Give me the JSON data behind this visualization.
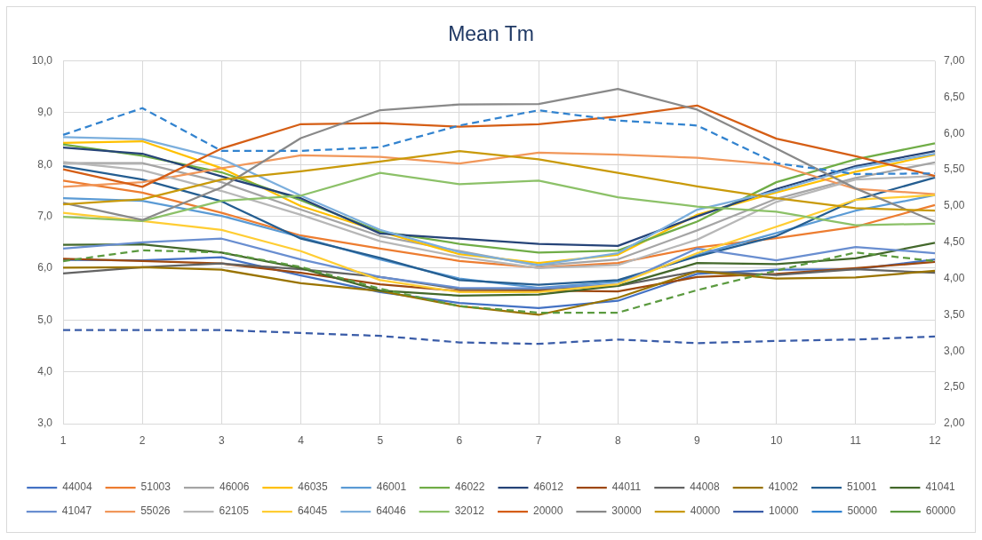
{
  "chart_data": {
    "type": "line",
    "title": "Mean Tm",
    "categories": [
      "1",
      "2",
      "3",
      "4",
      "5",
      "6",
      "7",
      "8",
      "9",
      "10",
      "11",
      "12"
    ],
    "series": [
      {
        "name": "44004",
        "color": "#4472c4",
        "values": [
          6.16,
          6.15,
          6.21,
          5.86,
          5.54,
          5.33,
          5.23,
          5.37,
          5.89,
          5.97,
          5.98,
          6.17
        ]
      },
      {
        "name": "51003",
        "color": "#ed7d31",
        "values": [
          7.69,
          7.46,
          7.07,
          6.63,
          6.38,
          6.14,
          6.01,
          6.1,
          6.4,
          6.58,
          6.8,
          7.22
        ]
      },
      {
        "name": "46006",
        "color": "#a5a5a5",
        "values": [
          8.03,
          8.03,
          7.66,
          7.13,
          6.62,
          6.33,
          6.05,
          6.17,
          6.73,
          7.34,
          7.74,
          8.04
        ]
      },
      {
        "name": "46035",
        "color": "#ffc000",
        "values": [
          8.42,
          8.45,
          7.93,
          7.2,
          6.71,
          6.27,
          6.1,
          6.26,
          7.03,
          7.46,
          7.86,
          8.19
        ]
      },
      {
        "name": "46001",
        "color": "#5b9bd5",
        "values": [
          7.35,
          7.3,
          7.01,
          6.6,
          6.17,
          5.8,
          5.62,
          5.74,
          6.26,
          6.68,
          7.11,
          7.41
        ]
      },
      {
        "name": "46022",
        "color": "#70ad47",
        "values": [
          8.39,
          8.17,
          7.85,
          7.31,
          6.71,
          6.47,
          6.3,
          6.34,
          6.9,
          7.66,
          8.1,
          8.41
        ]
      },
      {
        "name": "46012",
        "color": "#264478",
        "values": [
          8.33,
          8.21,
          7.77,
          7.35,
          6.67,
          6.57,
          6.47,
          6.43,
          7.0,
          7.53,
          7.97,
          8.26
        ]
      },
      {
        "name": "44011",
        "color": "#9e480e",
        "values": [
          6.18,
          6.14,
          6.09,
          5.91,
          5.69,
          5.56,
          5.57,
          5.55,
          5.83,
          5.89,
          6.0,
          6.12
        ]
      },
      {
        "name": "44008",
        "color": "#636363",
        "values": [
          5.9,
          6.02,
          6.09,
          5.98,
          5.83,
          5.6,
          5.6,
          5.66,
          5.94,
          5.87,
          5.98,
          5.91
        ]
      },
      {
        "name": "41002",
        "color": "#997300",
        "values": [
          6.01,
          6.02,
          5.97,
          5.71,
          5.56,
          5.27,
          5.1,
          5.43,
          5.94,
          5.8,
          5.82,
          5.95
        ]
      },
      {
        "name": "51001",
        "color": "#255e91",
        "values": [
          7.97,
          7.71,
          7.29,
          6.57,
          6.2,
          5.77,
          5.68,
          5.77,
          6.23,
          6.62,
          7.32,
          7.75
        ]
      },
      {
        "name": "41041",
        "color": "#43682b",
        "values": [
          6.45,
          6.46,
          6.3,
          6.0,
          5.57,
          5.47,
          5.49,
          5.66,
          6.1,
          6.08,
          6.19,
          6.49
        ]
      },
      {
        "name": "41047",
        "color": "#698ed0",
        "values": [
          6.38,
          6.5,
          6.57,
          6.17,
          5.83,
          5.62,
          5.61,
          5.69,
          6.38,
          6.15,
          6.41,
          6.29
        ]
      },
      {
        "name": "55026",
        "color": "#f1975a",
        "values": [
          7.57,
          7.66,
          7.93,
          8.18,
          8.15,
          8.02,
          8.23,
          8.19,
          8.13,
          8.0,
          7.53,
          7.43
        ]
      },
      {
        "name": "62105",
        "color": "#b7b7b7",
        "values": [
          8.05,
          7.89,
          7.49,
          7.03,
          6.52,
          6.22,
          6.0,
          6.06,
          6.55,
          7.28,
          7.71,
          7.78
        ]
      },
      {
        "name": "64045",
        "color": "#ffcd33",
        "values": [
          7.07,
          6.91,
          6.74,
          6.33,
          5.77,
          5.54,
          5.54,
          5.69,
          6.29,
          6.8,
          7.32,
          7.41
        ]
      },
      {
        "name": "64046",
        "color": "#7cafdd",
        "values": [
          8.53,
          8.49,
          8.11,
          7.4,
          6.74,
          6.31,
          6.06,
          6.29,
          7.13,
          7.49,
          7.94,
          8.21
        ]
      },
      {
        "name": "32012",
        "color": "#8cc168",
        "values": [
          6.99,
          6.91,
          7.3,
          7.4,
          7.84,
          7.62,
          7.69,
          7.37,
          7.19,
          7.09,
          6.83,
          6.86
        ]
      },
      {
        "name": "20000",
        "color": "#d55e15",
        "values": [
          7.91,
          7.57,
          8.31,
          8.78,
          8.8,
          8.73,
          8.78,
          8.93,
          9.14,
          8.5,
          8.16,
          7.78
        ]
      },
      {
        "name": "30000",
        "color": "#898989",
        "values": [
          7.26,
          6.93,
          7.56,
          8.51,
          9.05,
          9.16,
          9.17,
          9.46,
          9.06,
          8.31,
          7.54,
          6.9
        ]
      },
      {
        "name": "40000",
        "color": "#c99a0a",
        "values": [
          7.23,
          7.33,
          7.71,
          7.87,
          8.06,
          8.26,
          8.1,
          7.84,
          7.58,
          7.35,
          7.16,
          7.11
        ]
      },
      {
        "name": "10000",
        "color": "#3a5ca8",
        "axis": "y2",
        "line_style": "dashed",
        "values": [
          3.29,
          3.29,
          3.29,
          3.25,
          3.21,
          3.12,
          3.1,
          3.16,
          3.11,
          3.14,
          3.16,
          3.2
        ]
      },
      {
        "name": "50000",
        "color": "#3283cf",
        "axis": "y2",
        "line_style": "dashed",
        "values": [
          5.98,
          6.35,
          5.76,
          5.76,
          5.81,
          6.11,
          6.32,
          6.18,
          6.11,
          5.59,
          5.44,
          5.45
        ]
      },
      {
        "name": "60000",
        "color": "#5b9a3f",
        "axis": "y2",
        "line_style": "dashed",
        "values": [
          4.24,
          4.39,
          4.36,
          4.16,
          3.86,
          3.62,
          3.53,
          3.53,
          3.84,
          4.11,
          4.36,
          4.24
        ]
      }
    ],
    "ylim": [
      3,
      10
    ],
    "yticks": [
      {
        "value": 3,
        "label": "3,0"
      },
      {
        "value": 4,
        "label": "4,0"
      },
      {
        "value": 5,
        "label": "5,0"
      },
      {
        "value": 6,
        "label": "6,0"
      },
      {
        "value": 7,
        "label": "7,0"
      },
      {
        "value": 8,
        "label": "8,0"
      },
      {
        "value": 9,
        "label": "9,0"
      },
      {
        "value": 10,
        "label": "10,0"
      }
    ],
    "y2lim": [
      2,
      7
    ],
    "y2ticks": [
      {
        "value": 2,
        "label": "2,00"
      },
      {
        "value": 2.5,
        "label": "2,50"
      },
      {
        "value": 3,
        "label": "3,00"
      },
      {
        "value": 3.5,
        "label": "3,50"
      },
      {
        "value": 4,
        "label": "4,00"
      },
      {
        "value": 4.5,
        "label": "4,50"
      },
      {
        "value": 5,
        "label": "5,00"
      },
      {
        "value": 5.5,
        "label": "5,50"
      },
      {
        "value": 6,
        "label": "6,00"
      },
      {
        "value": 6.5,
        "label": "6,50"
      },
      {
        "value": 7,
        "label": "7,00"
      }
    ],
    "grid": true,
    "legend": "bottom",
    "marker": "none",
    "line_style": "solid"
  }
}
